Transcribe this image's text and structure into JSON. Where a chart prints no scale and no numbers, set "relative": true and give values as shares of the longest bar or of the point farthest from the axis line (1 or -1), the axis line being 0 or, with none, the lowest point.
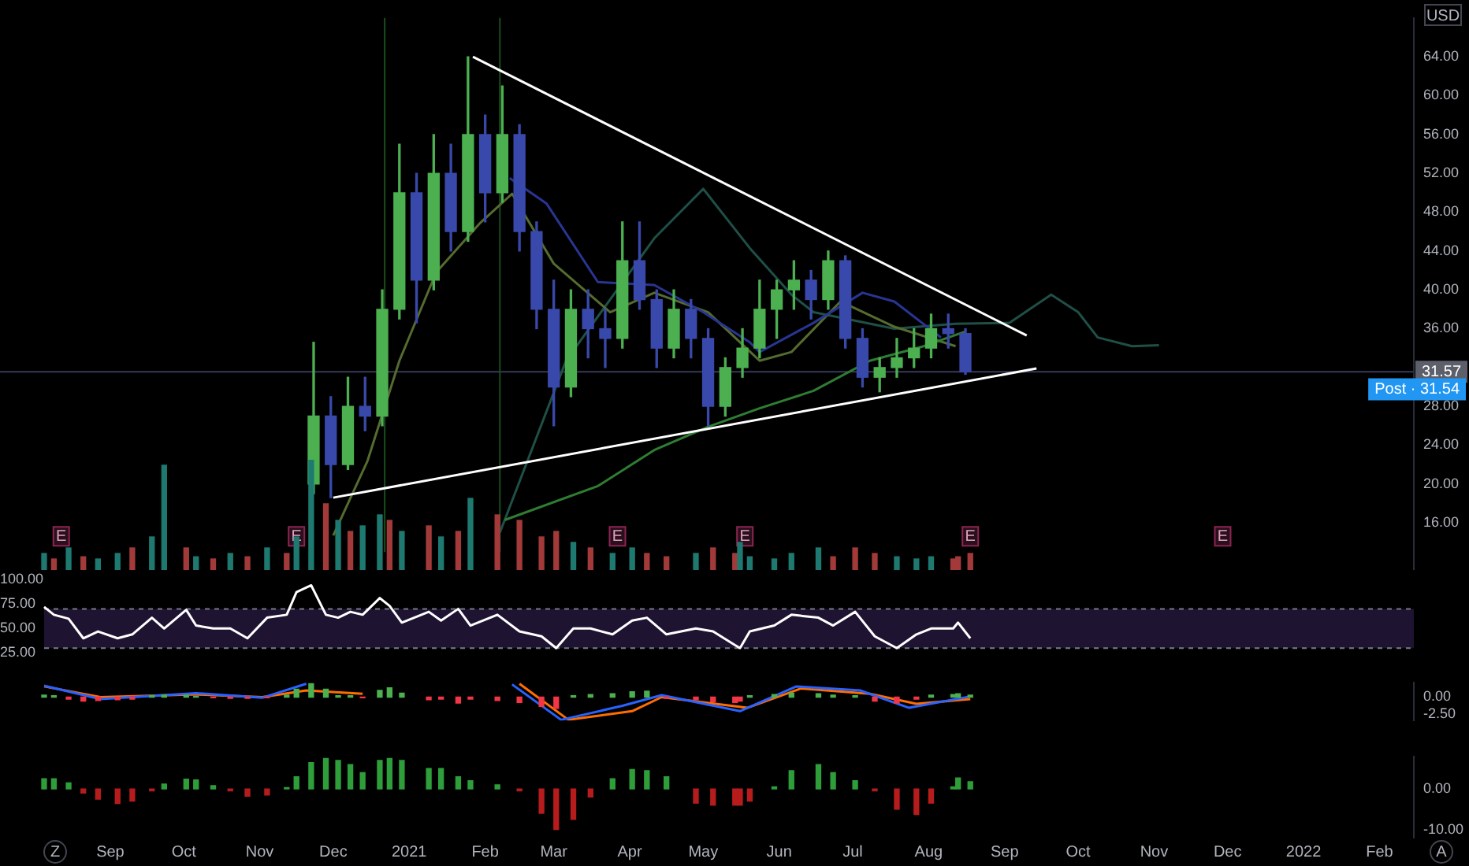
{
  "chart_data": [
    {
      "type": "candlestick",
      "x": [
        "2020-11-23",
        "2020-11-30",
        "2020-12-07",
        "2020-12-14",
        "2020-12-21",
        "2020-12-28",
        "2021-01-04",
        "2021-01-11",
        "2021-01-18",
        "2021-01-25",
        "2021-02-01",
        "2021-02-08",
        "2021-02-15",
        "2021-02-22",
        "2021-03-01",
        "2021-03-08",
        "2021-03-15",
        "2021-03-22",
        "2021-03-29",
        "2021-04-05",
        "2021-04-12",
        "2021-04-19",
        "2021-04-26",
        "2021-05-03",
        "2021-05-10",
        "2021-05-17",
        "2021-05-24",
        "2021-05-31",
        "2021-06-07",
        "2021-06-14",
        "2021-06-21",
        "2021-06-28",
        "2021-07-05",
        "2021-07-12",
        "2021-07-19",
        "2021-07-26",
        "2021-08-02",
        "2021-08-09",
        "2021-08-16"
      ],
      "ohlc": [
        [
          20,
          34.6,
          19,
          27
        ],
        [
          27,
          29,
          18.6,
          22
        ],
        [
          22,
          31,
          21.5,
          28
        ],
        [
          28,
          31,
          25.5,
          27
        ],
        [
          27,
          40,
          26,
          38
        ],
        [
          38,
          55,
          37,
          50
        ],
        [
          50,
          52,
          36.6,
          41
        ],
        [
          41,
          56,
          40,
          52
        ],
        [
          52,
          55,
          44,
          46
        ],
        [
          46,
          64,
          45,
          56
        ],
        [
          56,
          58,
          47,
          50
        ],
        [
          50,
          61,
          49,
          56
        ],
        [
          56,
          57,
          44,
          46
        ],
        [
          46,
          47,
          36,
          38
        ],
        [
          38,
          41,
          26,
          30
        ],
        [
          30,
          40,
          29,
          38
        ],
        [
          38,
          40,
          33,
          36
        ],
        [
          36,
          38,
          32,
          35
        ],
        [
          35,
          47,
          34,
          43
        ],
        [
          43,
          47,
          38,
          39
        ],
        [
          39,
          40,
          32,
          34
        ],
        [
          34,
          40,
          33,
          38
        ],
        [
          38,
          39,
          33,
          35
        ],
        [
          35,
          36,
          26,
          28
        ],
        [
          28,
          33,
          27,
          32
        ],
        [
          32,
          36,
          31,
          34
        ],
        [
          34,
          41,
          33,
          38
        ],
        [
          38,
          41,
          35,
          40
        ],
        [
          40,
          43,
          38,
          41
        ],
        [
          41,
          42,
          37,
          39
        ],
        [
          39,
          44,
          38,
          43
        ],
        [
          43,
          43.5,
          34,
          35
        ],
        [
          35,
          36,
          30,
          31
        ],
        [
          31,
          33,
          29.5,
          32
        ],
        [
          32,
          35,
          31,
          33
        ],
        [
          33,
          36,
          32,
          34
        ],
        [
          34,
          37.5,
          33,
          36
        ],
        [
          36,
          37.5,
          34,
          35.5
        ],
        [
          35.5,
          36,
          31.3,
          31.57
        ]
      ],
      "colors": [
        "#4caf50",
        "#3949ab",
        "#4caf50",
        "#3949ab",
        "#4caf50",
        "#4caf50",
        "#3949ab",
        "#4caf50",
        "#3949ab",
        "#4caf50",
        "#3949ab",
        "#4caf50",
        "#3949ab",
        "#3949ab",
        "#3949ab",
        "#4caf50",
        "#3949ab",
        "#3949ab",
        "#4caf50",
        "#3949ab",
        "#3949ab",
        "#4caf50",
        "#3949ab",
        "#3949ab",
        "#4caf50",
        "#4caf50",
        "#4caf50",
        "#4caf50",
        "#4caf50",
        "#3949ab",
        "#4caf50",
        "#3949ab",
        "#3949ab",
        "#4caf50",
        "#4caf50",
        "#4caf50",
        "#4caf50",
        "#3949ab",
        "#3949ab"
      ],
      "series": [
        {
          "type": "line",
          "color": "#ffffff",
          "x": [
            "2021-01-27",
            "2021-09-10"
          ],
          "values": [
            64,
            35.3
          ]
        },
        {
          "type": "line",
          "color": "#ffffff",
          "x": [
            "2020-12-01",
            "2021-09-14"
          ],
          "values": [
            18.6,
            31.9
          ]
        },
        {
          "type": "line",
          "color": "#283593",
          "x": [
            "2021-02-11",
            "2021-02-26",
            "2021-03-19",
            "2021-04-11",
            "2021-05-01",
            "2021-05-20",
            "2021-05-24",
            "2021-06-15",
            "2021-07-05",
            "2021-07-18",
            "2021-08-06"
          ],
          "values": [
            51.5,
            48.9,
            40.8,
            40.5,
            37.7,
            34.6,
            33.6,
            36.6,
            39.7,
            38.8,
            35.1
          ]
        },
        {
          "type": "line",
          "color": "#2e7d32",
          "x": [
            "2021-02-09",
            "2021-03-19",
            "2021-04-11",
            "2021-05-03",
            "2021-05-24",
            "2021-06-15",
            "2021-07-08",
            "2021-07-30",
            "2021-08-16"
          ],
          "values": [
            16.3,
            19.8,
            23.5,
            25.9,
            27.8,
            29.6,
            32.7,
            34.2,
            35.7
          ]
        },
        {
          "type": "line",
          "color": "#556b2f",
          "x": [
            "2020-12-01",
            "2020-12-15",
            "2020-12-28",
            "2021-01-12",
            "2021-01-30",
            "2021-02-12",
            "2021-03-01",
            "2021-03-24",
            "2021-04-11",
            "2021-05-03",
            "2021-05-24",
            "2021-06-06",
            "2021-06-26",
            "2021-07-18",
            "2021-08-12"
          ],
          "values": [
            14.7,
            22.4,
            32.7,
            41.8,
            46.9,
            49.9,
            42.7,
            37.7,
            39.7,
            37.7,
            32.7,
            33.6,
            38.8,
            36.2,
            34.2
          ]
        },
        {
          "type": "line",
          "color": "#1f4f47",
          "x": [
            "2021-02-07",
            "2021-03-06",
            "2021-04-11",
            "2021-05-01",
            "2021-05-20",
            "2021-06-06",
            "2021-06-15",
            "2021-07-18",
            "2021-08-12",
            "2021-09-03",
            "2021-09-20",
            "2021-10-01",
            "2021-10-09",
            "2021-10-23",
            "2021-11-03"
          ],
          "values": [
            15,
            32.7,
            45.3,
            50.4,
            44.3,
            39.5,
            37.7,
            36,
            36.5,
            36.6,
            39.5,
            37.7,
            35.1,
            34.2,
            34.3
          ]
        }
      ],
      "xlim": [
        "2020-07-18",
        "2022-02-15"
      ],
      "ylim": [
        13,
        68
      ],
      "yticks": [
        {
          "value": 16,
          "label": "16.00"
        },
        {
          "value": 20,
          "label": "20.00"
        },
        {
          "value": 24,
          "label": "24.00"
        },
        {
          "value": 28,
          "label": "28.00"
        },
        {
          "value": 36,
          "label": "36.00"
        },
        {
          "value": 40,
          "label": "40.00"
        },
        {
          "value": 44,
          "label": "44.00"
        },
        {
          "value": 48,
          "label": "48.00"
        },
        {
          "value": 52,
          "label": "52.00"
        },
        {
          "value": 56,
          "label": "56.00"
        },
        {
          "value": 60,
          "label": "60.00"
        },
        {
          "value": 64,
          "label": "64.00"
        }
      ],
      "ref_lines": [
        {
          "axis": "y",
          "value": 31.57,
          "label": "31.57",
          "color": "#363a59"
        },
        {
          "axis": "x",
          "value": "2020-12-22",
          "color": "#1b4d1e"
        },
        {
          "axis": "x",
          "value": "2021-02-07",
          "color": "#1b4d1e"
        }
      ],
      "annotations": [
        "USD",
        {
          "text": "Post · 31.54",
          "y": 31.54
        },
        {
          "text": "E",
          "x": "2020-08-12"
        },
        {
          "text": "E",
          "x": "2020-11-16"
        },
        {
          "text": "E",
          "x": "2021-03-27"
        },
        {
          "text": "E",
          "x": "2021-05-18"
        },
        {
          "text": "E",
          "x": "2021-08-18"
        },
        {
          "text": "E",
          "x": "2021-11-29"
        }
      ],
      "tick_labels": "y",
      "legend": false
    },
    {
      "type": "bar",
      "relative": true,
      "x": [
        "2020-08-05",
        "2020-08-09",
        "2020-08-15",
        "2020-08-21",
        "2020-08-27",
        "2020-09-04",
        "2020-09-10",
        "2020-09-18",
        "2020-09-23",
        "2020-10-02",
        "2020-10-06",
        "2020-10-13",
        "2020-10-20",
        "2020-10-27",
        "2020-11-04",
        "2020-11-12",
        "2020-11-16",
        "2020-11-22",
        "2020-11-28",
        "2020-12-03",
        "2020-12-08",
        "2020-12-13",
        "2020-12-20",
        "2020-12-24",
        "2020-12-29",
        "2021-01-09",
        "2021-01-14",
        "2021-01-21",
        "2021-01-26",
        "2021-02-06",
        "2021-02-15",
        "2021-02-24",
        "2021-03-02",
        "2021-03-09",
        "2021-03-16",
        "2021-03-25",
        "2021-04-02",
        "2021-04-08",
        "2021-04-16",
        "2021-04-28",
        "2021-05-05",
        "2021-05-14",
        "2021-05-16",
        "2021-05-20",
        "2021-05-30",
        "2021-06-06",
        "2021-06-17",
        "2021-06-23",
        "2021-07-02",
        "2021-07-10",
        "2021-07-19",
        "2021-07-27",
        "2021-08-02",
        "2021-08-11",
        "2021-08-13",
        "2021-08-18"
      ],
      "values": [
        0.15,
        0.1,
        0.2,
        0.12,
        0.1,
        0.15,
        0.2,
        0.3,
        0.95,
        0.2,
        0.12,
        0.1,
        0.15,
        0.12,
        0.2,
        0.15,
        0.3,
        1.0,
        0.6,
        0.45,
        0.35,
        0.4,
        0.5,
        0.45,
        0.35,
        0.4,
        0.3,
        0.35,
        0.65,
        0.5,
        0.45,
        0.3,
        0.35,
        0.25,
        0.2,
        0.15,
        0.2,
        0.15,
        0.12,
        0.15,
        0.2,
        0.15,
        0.25,
        0.12,
        0.1,
        0.15,
        0.2,
        0.12,
        0.2,
        0.15,
        0.12,
        0.1,
        0.12,
        0.1,
        0.12,
        0.15
      ],
      "colors": [
        "#1e7a70",
        "#a33a3a",
        "#1e7a70",
        "#a33a3a",
        "#1e7a70",
        "#1e7a70",
        "#a33a3a",
        "#1e7a70",
        "#1e7a70",
        "#a33a3a",
        "#1e7a70",
        "#a33a3a",
        "#1e7a70",
        "#a33a3a",
        "#1e7a70",
        "#a33a3a",
        "#1e7a70",
        "#1e7a70",
        "#a33a3a",
        "#1e7a70",
        "#a33a3a",
        "#1e7a70",
        "#1e7a70",
        "#a33a3a",
        "#1e7a70",
        "#a33a3a",
        "#1e7a70",
        "#a33a3a",
        "#1e7a70",
        "#a33a3a",
        "#a33a3a",
        "#a33a3a",
        "#a33a3a",
        "#1e7a70",
        "#a33a3a",
        "#1e7a70",
        "#1e7a70",
        "#a33a3a",
        "#a33a3a",
        "#1e7a70",
        "#a33a3a",
        "#a33a3a",
        "#1e7a70",
        "#1e7a70",
        "#1e7a70",
        "#1e7a70",
        "#1e7a70",
        "#a33a3a",
        "#a33a3a",
        "#a33a3a",
        "#1e7a70",
        "#1e7a70",
        "#1e7a70",
        "#a33a3a",
        "#a33a3a",
        "#a33a3a"
      ],
      "xlim": [
        "2020-07-18",
        "2022-02-15"
      ],
      "tick_labels": false,
      "legend": false
    },
    {
      "type": "line",
      "color": "#ffffff",
      "x": [
        "2020-08-05",
        "2020-08-09",
        "2020-08-15",
        "2020-08-21",
        "2020-08-27",
        "2020-09-04",
        "2020-09-10",
        "2020-09-18",
        "2020-09-23",
        "2020-10-02",
        "2020-10-06",
        "2020-10-13",
        "2020-10-20",
        "2020-10-27",
        "2020-11-04",
        "2020-11-12",
        "2020-11-16",
        "2020-11-22",
        "2020-11-28",
        "2020-12-03",
        "2020-12-08",
        "2020-12-13",
        "2020-12-20",
        "2020-12-24",
        "2020-12-29",
        "2021-01-09",
        "2021-01-14",
        "2021-01-21",
        "2021-01-26",
        "2021-02-06",
        "2021-02-15",
        "2021-02-24",
        "2021-03-02",
        "2021-03-09",
        "2021-03-16",
        "2021-03-25",
        "2021-04-02",
        "2021-04-08",
        "2021-04-16",
        "2021-04-28",
        "2021-05-05",
        "2021-05-14",
        "2021-05-16",
        "2021-05-20",
        "2021-05-30",
        "2021-06-06",
        "2021-06-17",
        "2021-06-23",
        "2021-07-02",
        "2021-07-10",
        "2021-07-19",
        "2021-07-27",
        "2021-08-02",
        "2021-08-11",
        "2021-08-13",
        "2021-08-18"
      ],
      "values": [
        72,
        64,
        60,
        40,
        47,
        40,
        44,
        61,
        50,
        69,
        53,
        50,
        50,
        40,
        61,
        64,
        87,
        94,
        64,
        61,
        67,
        64,
        81,
        73,
        56,
        67,
        58,
        70,
        53,
        64,
        47,
        42,
        30,
        50,
        50,
        44,
        58,
        61,
        44,
        50,
        47,
        33,
        30,
        47,
        53,
        64,
        61,
        53,
        67,
        42,
        30,
        44,
        50,
        50,
        56,
        40
      ],
      "xlim": [
        "2020-07-18",
        "2022-02-15"
      ],
      "ylim": [
        22,
        100
      ],
      "yticks": [
        {
          "value": 25,
          "label": "25.00"
        },
        {
          "value": 50,
          "label": "50.00"
        },
        {
          "value": 75,
          "label": "75.00"
        },
        {
          "value": 100,
          "label": "100.00"
        }
      ],
      "bands": [
        {
          "axis": "y",
          "from": 30,
          "to": 70,
          "color": "#1e1432"
        }
      ],
      "ref_lines": [
        {
          "axis": "y",
          "value": 70,
          "color": "#787b86",
          "line_style": "dashed"
        },
        {
          "axis": "y",
          "value": 30,
          "color": "#787b86",
          "line_style": "dashed"
        }
      ],
      "tick_labels": "y",
      "legend": false
    },
    {
      "type": "bar",
      "series": [
        {
          "type": "bar",
          "x": [
            "2020-08-05",
            "2020-08-09",
            "2020-08-15",
            "2020-08-21",
            "2020-08-27",
            "2020-09-04",
            "2020-09-10",
            "2020-09-18",
            "2020-09-23",
            "2020-10-02",
            "2020-10-06",
            "2020-10-13",
            "2020-10-20",
            "2020-10-27",
            "2020-11-04",
            "2020-11-12",
            "2020-11-16",
            "2020-11-22",
            "2020-11-28",
            "2020-12-03",
            "2020-12-08",
            "2020-12-13",
            "2020-12-20",
            "2020-12-24",
            "2020-12-29",
            "2021-01-09",
            "2021-01-14",
            "2021-01-21",
            "2021-01-26",
            "2021-02-06",
            "2021-02-15",
            "2021-02-24",
            "2021-03-02",
            "2021-03-09",
            "2021-03-16",
            "2021-03-25",
            "2021-04-02",
            "2021-04-08",
            "2021-04-16",
            "2021-04-28",
            "2021-05-05",
            "2021-05-14",
            "2021-05-16",
            "2021-05-20",
            "2021-05-30",
            "2021-06-06",
            "2021-06-17",
            "2021-06-23",
            "2021-07-02",
            "2021-07-10",
            "2021-07-19",
            "2021-07-27",
            "2021-08-02",
            "2021-08-11",
            "2021-08-13",
            "2021-08-18"
          ],
          "values": [
            0.3,
            0.2,
            -0.3,
            -0.6,
            -0.5,
            -0.4,
            -0.3,
            0.2,
            0.3,
            0.3,
            0.1,
            -0.1,
            -0.2,
            -0.2,
            -0.1,
            0.3,
            1.2,
            2.0,
            1.2,
            0.2,
            0.2,
            -0.1,
            1.0,
            1.4,
            0.6,
            -0.4,
            -0.3,
            -0.9,
            -0.3,
            -0.5,
            -0.8,
            -1.4,
            -1.7,
            0.2,
            0.4,
            0.5,
            0.8,
            0.9,
            -0.2,
            -0.4,
            -0.7,
            -0.8,
            -0.6,
            0.2,
            0.4,
            0.6,
            0.5,
            0.3,
            0.2,
            -0.6,
            -0.9,
            -0.3,
            0.3,
            0.4,
            0.5,
            0.3
          ],
          "colors": [
            "#4caf50",
            "#4caf50",
            "#f23645",
            "#f23645",
            "#f23645",
            "#f23645",
            "#f23645",
            "#4caf50",
            "#4caf50",
            "#4caf50",
            "#4caf50",
            "#f23645",
            "#f23645",
            "#f23645",
            "#f23645",
            "#4caf50",
            "#4caf50",
            "#4caf50",
            "#4caf50",
            "#4caf50",
            "#4caf50",
            "#f23645",
            "#4caf50",
            "#4caf50",
            "#4caf50",
            "#f23645",
            "#f23645",
            "#f23645",
            "#f23645",
            "#f23645",
            "#f23645",
            "#f23645",
            "#f23645",
            "#4caf50",
            "#4caf50",
            "#4caf50",
            "#4caf50",
            "#4caf50",
            "#f23645",
            "#f23645",
            "#f23645",
            "#f23645",
            "#f23645",
            "#4caf50",
            "#4caf50",
            "#4caf50",
            "#4caf50",
            "#4caf50",
            "#4caf50",
            "#f23645",
            "#f23645",
            "#f23645",
            "#4caf50",
            "#4caf50",
            "#4caf50",
            "#4caf50"
          ]
        },
        {
          "type": "line",
          "color": "#2962ff",
          "x": [
            "2020-08-05",
            "2020-08-28",
            "2020-10-06",
            "2020-11-02",
            "2020-11-20",
            "2020-12-13",
            "2021-02-12",
            "2021-03-04",
            "2021-03-29",
            "2021-04-14",
            "2021-05-16",
            "2021-06-08",
            "2021-07-04",
            "2021-07-24",
            "2021-08-18"
          ],
          "values": [
            1.7,
            -0.3,
            0.6,
            -0.1,
            2.0,
            null,
            1.9,
            -3.4,
            -1.3,
            0.3,
            -2.1,
            1.6,
            1.0,
            -1.6,
            0.1
          ]
        },
        {
          "type": "line",
          "color": "#ff6d00",
          "x": [
            "2020-08-05",
            "2020-08-28",
            "2020-10-06",
            "2020-11-02",
            "2020-11-20",
            "2020-12-13",
            "2021-01-20",
            "2021-02-15",
            "2021-03-07",
            "2021-04-02",
            "2021-04-14",
            "2021-05-19",
            "2021-06-10",
            "2021-07-08",
            "2021-07-27",
            "2021-08-18"
          ],
          "values": [
            1.6,
            0.0,
            0.4,
            0.0,
            1.0,
            0.5,
            null,
            2.0,
            -3.4,
            -2.1,
            0.0,
            -1.6,
            1.3,
            0.5,
            -1.0,
            -0.3
          ]
        }
      ],
      "xlim": [
        "2020-07-18",
        "2022-02-15"
      ],
      "ylim": [
        -3.5,
        2.2
      ],
      "yticks": [
        {
          "value": 0,
          "label": "0.00"
        },
        {
          "value": -2.5,
          "label": "-2.50"
        }
      ],
      "tick_labels": "y",
      "legend": false
    },
    {
      "type": "bar",
      "x": [
        "2020-08-05",
        "2020-08-09",
        "2020-08-15",
        "2020-08-21",
        "2020-08-27",
        "2020-09-04",
        "2020-09-10",
        "2020-09-18",
        "2020-09-23",
        "2020-10-02",
        "2020-10-06",
        "2020-10-13",
        "2020-10-20",
        "2020-10-27",
        "2020-11-04",
        "2020-11-12",
        "2020-11-16",
        "2020-11-22",
        "2020-11-28",
        "2020-12-03",
        "2020-12-08",
        "2020-12-13",
        "2020-12-20",
        "2020-12-24",
        "2020-12-29",
        "2021-01-09",
        "2021-01-14",
        "2021-01-21",
        "2021-01-26",
        "2021-02-06",
        "2021-02-15",
        "2021-02-24",
        "2021-03-02",
        "2021-03-09",
        "2021-03-16",
        "2021-03-25",
        "2021-04-02",
        "2021-04-08",
        "2021-04-16",
        "2021-04-28",
        "2021-05-05",
        "2021-05-14",
        "2021-05-16",
        "2021-05-20",
        "2021-05-30",
        "2021-06-06",
        "2021-06-17",
        "2021-06-23",
        "2021-07-02",
        "2021-07-10",
        "2021-07-19",
        "2021-07-27",
        "2021-08-02",
        "2021-08-11",
        "2021-08-13",
        "2021-08-18"
      ],
      "values": [
        2.5,
        2.5,
        1.5,
        -1.0,
        -2.5,
        -3.6,
        -3.0,
        -0.5,
        1.2,
        2.4,
        2.2,
        0.8,
        -0.5,
        -1.8,
        -1.5,
        0.3,
        3.0,
        6.5,
        7.5,
        7.0,
        6.0,
        4.0,
        7.0,
        7.5,
        7.0,
        5.0,
        5.0,
        3.0,
        2.0,
        1.0,
        -0.5,
        -6.0,
        -10.0,
        -7.5,
        -2.0,
        2.5,
        4.8,
        4.5,
        3.0,
        -3.5,
        -4.0,
        -4.0,
        -4.0,
        -3.0,
        0.5,
        4.5,
        6.0,
        4.0,
        2.0,
        -0.5,
        -5.0,
        -6.3,
        -3.5,
        0.5,
        2.7,
        1.8
      ],
      "colors": [
        "#2e9e3a",
        "#2e9e3a",
        "#2e9e3a",
        "#b71c1c",
        "#b71c1c",
        "#b71c1c",
        "#b71c1c",
        "#b71c1c",
        "#2e9e3a",
        "#2e9e3a",
        "#2e9e3a",
        "#2e9e3a",
        "#b71c1c",
        "#b71c1c",
        "#b71c1c",
        "#2e9e3a",
        "#2e9e3a",
        "#2e9e3a",
        "#2e9e3a",
        "#2e9e3a",
        "#2e9e3a",
        "#2e9e3a",
        "#2e9e3a",
        "#2e9e3a",
        "#2e9e3a",
        "#2e9e3a",
        "#2e9e3a",
        "#2e9e3a",
        "#2e9e3a",
        "#2e9e3a",
        "#b71c1c",
        "#b71c1c",
        "#b71c1c",
        "#b71c1c",
        "#b71c1c",
        "#2e9e3a",
        "#2e9e3a",
        "#2e9e3a",
        "#2e9e3a",
        "#b71c1c",
        "#b71c1c",
        "#b71c1c",
        "#b71c1c",
        "#b71c1c",
        "#2e9e3a",
        "#2e9e3a",
        "#2e9e3a",
        "#2e9e3a",
        "#2e9e3a",
        "#b71c1c",
        "#b71c1c",
        "#b71c1c",
        "#b71c1c",
        "#2e9e3a",
        "#2e9e3a",
        "#2e9e3a"
      ],
      "xlim": [
        "2020-07-18",
        "2022-02-15"
      ],
      "ylim": [
        -12,
        8
      ],
      "yticks": [
        {
          "value": 0,
          "label": "0.00"
        },
        {
          "value": -10,
          "label": "-10.00"
        }
      ],
      "xticks": [
        {
          "value": "2020-09-01",
          "label": "Sep"
        },
        {
          "value": "2020-10-01",
          "label": "Oct"
        },
        {
          "value": "2020-11-01",
          "label": "Nov"
        },
        {
          "value": "2020-12-01",
          "label": "Dec"
        },
        {
          "value": "2021-01-01",
          "label": "2021"
        },
        {
          "value": "2021-02-01",
          "label": "Feb"
        },
        {
          "value": "2021-03-01",
          "label": "Mar"
        },
        {
          "value": "2021-04-01",
          "label": "Apr"
        },
        {
          "value": "2021-05-01",
          "label": "May"
        },
        {
          "value": "2021-06-01",
          "label": "Jun"
        },
        {
          "value": "2021-07-01",
          "label": "Jul"
        },
        {
          "value": "2021-08-01",
          "label": "Aug"
        },
        {
          "value": "2021-09-01",
          "label": "Sep"
        },
        {
          "value": "2021-10-01",
          "label": "Oct"
        },
        {
          "value": "2021-11-01",
          "label": "Nov"
        },
        {
          "value": "2021-12-01",
          "label": "Dec"
        },
        {
          "value": "2022-01-01",
          "label": "2022"
        },
        {
          "value": "2022-02-01",
          "label": "Feb"
        }
      ],
      "annotations": [
        "Z",
        "A"
      ],
      "legend": false
    }
  ]
}
